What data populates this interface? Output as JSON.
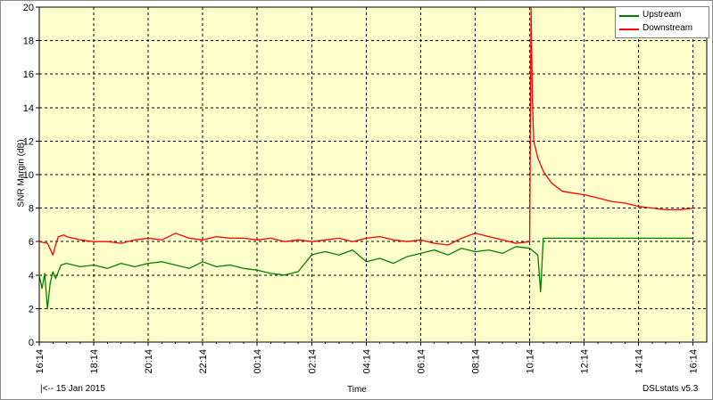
{
  "chart_data": {
    "type": "line",
    "title": "",
    "xlabel": "Time",
    "ylabel": "SNR Margin (dB)",
    "ylim": [
      0,
      20
    ],
    "yticks": [
      0,
      2,
      4,
      6,
      8,
      10,
      12,
      14,
      16,
      18,
      20
    ],
    "xticks": [
      "16:14",
      "18:14",
      "20:14",
      "22:14",
      "00:14",
      "02:14",
      "04:14",
      "06:14",
      "08:14",
      "10:14",
      "12:14",
      "14:14",
      "16:14"
    ],
    "x_unit": "hours from start (16:14)",
    "grid": true,
    "legend_position": "top-right",
    "date_label": "|<-- 15 Jan 2015",
    "version_label": "DSLstats v5.3",
    "series": [
      {
        "name": "Upstream",
        "color": "#008000",
        "x": [
          0,
          0.1,
          0.2,
          0.3,
          0.4,
          0.5,
          0.6,
          0.8,
          1.0,
          1.5,
          2.0,
          2.5,
          3.0,
          3.5,
          4.0,
          4.5,
          5.0,
          5.5,
          6.0,
          6.5,
          7.0,
          7.5,
          8.0,
          8.5,
          9.0,
          9.5,
          10.0,
          10.2,
          10.5,
          11.0,
          11.5,
          12.0,
          12.5,
          13.0,
          13.5,
          14.0,
          14.5,
          15.0,
          15.5,
          16.0,
          16.5,
          17.0,
          17.5,
          18.0,
          18.3,
          18.4,
          18.5,
          19.0,
          20.0,
          21.0,
          22.0,
          23.0,
          24.0
        ],
        "y": [
          4.0,
          3.2,
          4.1,
          2.0,
          3.5,
          4.2,
          3.8,
          4.6,
          4.7,
          4.5,
          4.6,
          4.4,
          4.7,
          4.5,
          4.7,
          4.8,
          4.6,
          4.4,
          4.8,
          4.5,
          4.6,
          4.4,
          4.3,
          4.1,
          4.0,
          4.2,
          5.2,
          5.3,
          5.4,
          5.2,
          5.5,
          4.8,
          5.0,
          4.7,
          5.1,
          5.3,
          5.5,
          5.2,
          5.6,
          5.4,
          5.5,
          5.3,
          5.7,
          5.6,
          5.2,
          3.0,
          6.2,
          6.2,
          6.2,
          6.2,
          6.2,
          6.2,
          6.2
        ]
      },
      {
        "name": "Downstream",
        "color": "#ff0000",
        "x": [
          0,
          0.3,
          0.5,
          0.6,
          0.7,
          0.9,
          1.0,
          1.5,
          2.0,
          2.5,
          3.0,
          3.5,
          4.0,
          4.5,
          5.0,
          5.5,
          6.0,
          6.5,
          7.0,
          7.5,
          8.0,
          8.5,
          9.0,
          9.5,
          10.0,
          10.5,
          11.0,
          11.5,
          12.0,
          12.5,
          13.0,
          13.5,
          14.0,
          14.5,
          15.0,
          15.5,
          16.0,
          16.5,
          17.0,
          17.5,
          18.0,
          18.05,
          18.1,
          18.15,
          18.3,
          18.5,
          18.8,
          19.2,
          19.6,
          20.0,
          20.5,
          21.0,
          21.5,
          22.0,
          22.5,
          23.0,
          23.5,
          24.0
        ],
        "y": [
          6.0,
          5.9,
          5.2,
          5.8,
          6.3,
          6.4,
          6.3,
          6.1,
          6.0,
          6.0,
          5.9,
          6.1,
          6.2,
          6.1,
          6.5,
          6.2,
          6.1,
          6.3,
          6.2,
          6.2,
          6.1,
          6.2,
          6.0,
          6.1,
          6.0,
          6.1,
          6.2,
          6.0,
          6.2,
          6.3,
          6.1,
          6.0,
          6.1,
          5.9,
          5.8,
          6.2,
          6.5,
          6.3,
          6.1,
          5.9,
          6.0,
          20.0,
          14.5,
          12.0,
          11.0,
          10.2,
          9.5,
          9.0,
          8.9,
          8.8,
          8.6,
          8.4,
          8.3,
          8.1,
          8.0,
          7.9,
          7.9,
          8.0
        ]
      }
    ]
  }
}
